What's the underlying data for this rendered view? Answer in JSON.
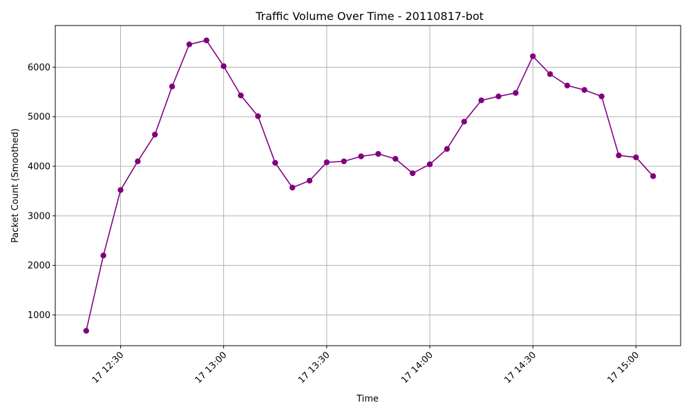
{
  "chart_data": {
    "type": "line",
    "title": "Traffic Volume Over Time - 20110817-bot",
    "xlabel": "Time",
    "ylabel": "Packet Count (Smoothed)",
    "x": [
      "12:20",
      "12:25",
      "12:30",
      "12:35",
      "12:40",
      "12:45",
      "12:50",
      "12:55",
      "13:00",
      "13:05",
      "13:10",
      "13:15",
      "13:20",
      "13:25",
      "13:30",
      "13:35",
      "13:40",
      "13:45",
      "13:50",
      "13:55",
      "14:00",
      "14:05",
      "14:10",
      "14:15",
      "14:20",
      "14:25",
      "14:30",
      "14:35",
      "14:40",
      "14:45",
      "14:50",
      "14:55",
      "15:00",
      "15:05"
    ],
    "series": [
      {
        "values": [
          680,
          2200,
          3520,
          4100,
          4640,
          5610,
          6460,
          6540,
          6020,
          5430,
          5010,
          4070,
          3570,
          3710,
          4080,
          4100,
          4200,
          4250,
          4150,
          3860,
          4040,
          4350,
          4900,
          5330,
          5410,
          5480,
          6220,
          5860,
          5630,
          5540,
          5410,
          4220,
          4180,
          3800
        ],
        "color": "#800080"
      }
    ],
    "x_ticks": [
      "17 12:30",
      "17 13:00",
      "17 13:30",
      "17 14:00",
      "17 14:30",
      "17 15:00"
    ],
    "x_tick_times": [
      "12:30",
      "13:00",
      "13:30",
      "14:00",
      "14:30",
      "15:00"
    ],
    "y_ticks": [
      1000,
      2000,
      3000,
      4000,
      5000,
      6000
    ],
    "xlim": [
      "12:11",
      "15:13"
    ],
    "ylim": [
      380,
      6840
    ],
    "grid": true,
    "marker": "circle"
  }
}
